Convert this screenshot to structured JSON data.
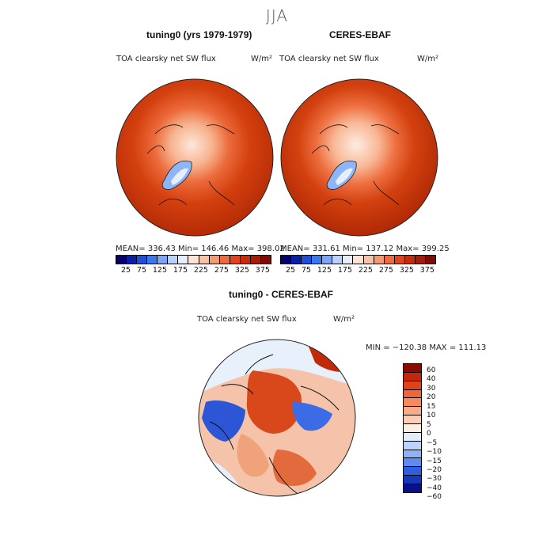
{
  "page_title": "JJA",
  "panels": {
    "left": {
      "title": "tuning0 (yrs 1979-1979)",
      "variable": "TOA clearsky net SW flux",
      "units": "W/m²",
      "stats": "MEAN= 336.43   Min= 146.46   Max= 398.02"
    },
    "right": {
      "title": "CERES-EBAF",
      "variable": "TOA clearsky net SW flux",
      "units": "W/m²",
      "stats": "MEAN= 331.61   Min= 137.12   Max= 399.25"
    },
    "diff": {
      "title": "tuning0 - CERES-EBAF",
      "variable": "TOA clearsky net SW flux",
      "units": "W/m²",
      "stats": "MIN = −120.38  MAX = 111.13"
    }
  },
  "colorbar_abs": {
    "labels": [
      "25",
      "75",
      "125",
      "175",
      "225",
      "275",
      "325",
      "375"
    ],
    "colors": [
      "#08006b",
      "#0a1fa8",
      "#1f4fd6",
      "#3a78f0",
      "#7aa6f5",
      "#b9d1fb",
      "#e6eefc",
      "#fbe4d6",
      "#f8c3a4",
      "#f59a70",
      "#ef6b3f",
      "#e3421c",
      "#c72d0c",
      "#a71b07",
      "#800a04"
    ]
  },
  "colorbar_diff": {
    "labels": [
      "60",
      "40",
      "30",
      "20",
      "15",
      "10",
      "5",
      "0",
      "−5",
      "−10",
      "−15",
      "−20",
      "−30",
      "−40",
      "−60"
    ],
    "colors": [
      "#8a0a02",
      "#c3260c",
      "#e2421b",
      "#f0663a",
      "#f58a5f",
      "#f8ab86",
      "#fbcdb2",
      "#fdeee4",
      "#e3edfa",
      "#bcd3fb",
      "#8fb3f6",
      "#5e8bf0",
      "#2f5fe0",
      "#1638b8",
      "#07128a"
    ]
  }
}
